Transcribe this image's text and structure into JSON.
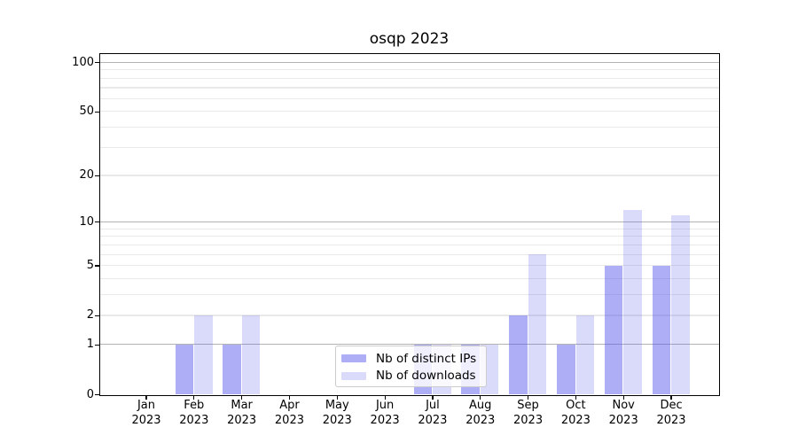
{
  "figure": {
    "title": "osqp 2023"
  },
  "chart_data": {
    "type": "bar",
    "title": "osqp 2023",
    "categories": [
      "Jan",
      "Feb",
      "Mar",
      "Apr",
      "May",
      "Jun",
      "Jul",
      "Aug",
      "Sep",
      "Oct",
      "Nov",
      "Dec"
    ],
    "category_year": "2023",
    "series": [
      {
        "name": "Nb of distinct IPs",
        "color": "rgba(82,82,237,0.47)",
        "values": [
          0,
          1,
          1,
          0,
          0,
          0,
          1,
          1,
          2,
          1,
          5,
          5
        ]
      },
      {
        "name": "Nb of downloads",
        "color": "rgba(82,82,237,0.21)",
        "values": [
          0,
          2,
          2,
          0,
          0,
          0,
          1,
          1,
          6,
          2,
          12,
          11
        ]
      }
    ],
    "xlabel": "",
    "ylabel": "",
    "yscale": "symlog-like: screen position proportional to log10(1 + value)",
    "yticks": [
      0,
      1,
      2,
      5,
      10,
      20,
      50,
      100
    ],
    "ylim": [
      0,
      112
    ],
    "grid": {
      "major": [
        1,
        10,
        100
      ],
      "minor": [
        2,
        3,
        4,
        5,
        6,
        7,
        8,
        9,
        20,
        30,
        40,
        50,
        60,
        70,
        80,
        90
      ],
      "major_color": "#b3b3b3",
      "minor_color": "#e9e9e9"
    },
    "legend": {
      "position": "inside lower-center of plot",
      "entries": [
        "Nb of distinct IPs",
        "Nb of downloads"
      ]
    },
    "colors": {
      "background": "#ffffff",
      "spine": "#000000",
      "text": "#000000"
    }
  }
}
